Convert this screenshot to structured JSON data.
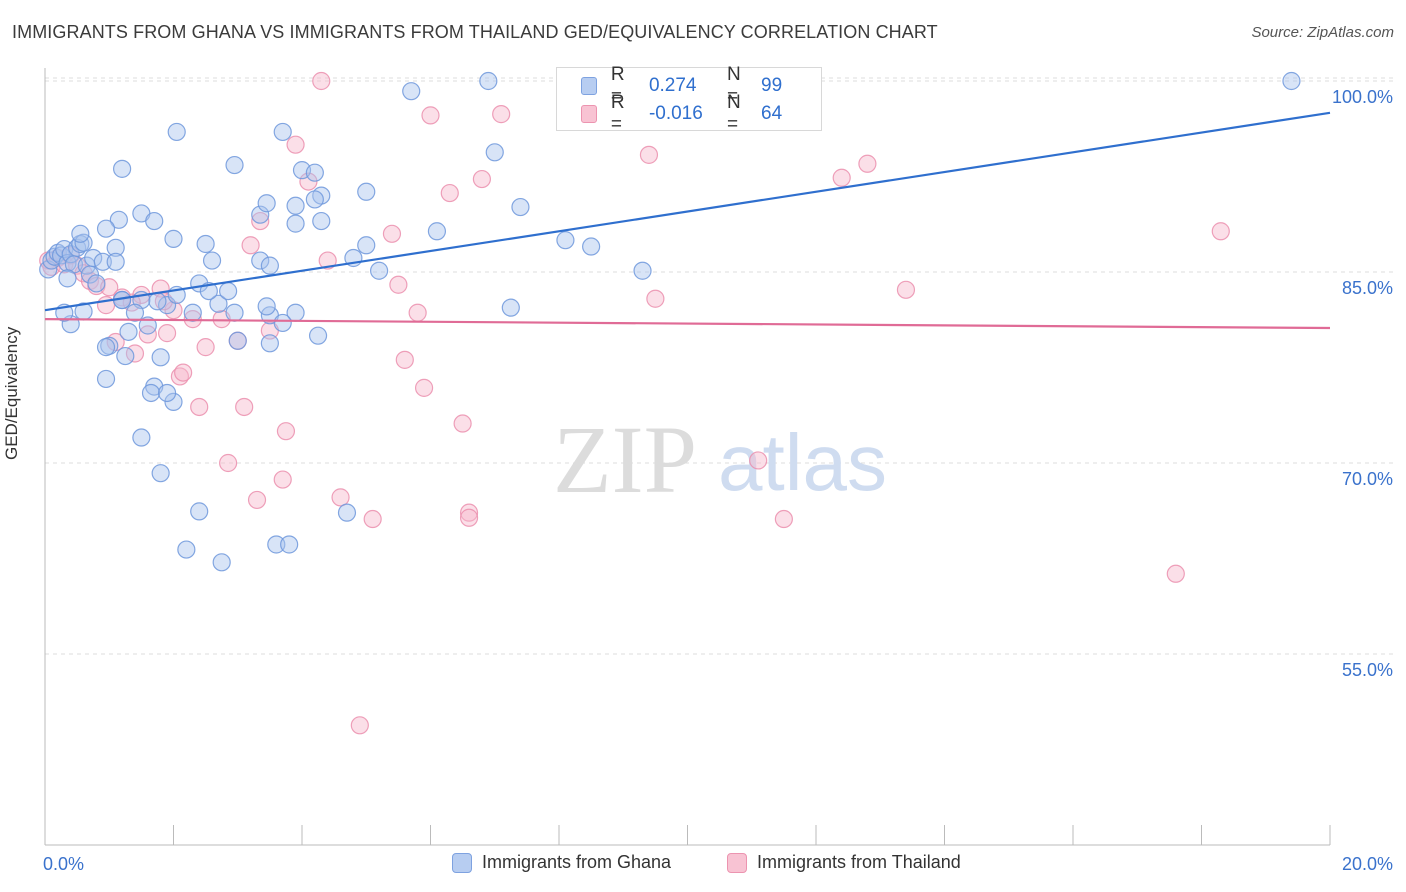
{
  "title": "IMMIGRANTS FROM GHANA VS IMMIGRANTS FROM THAILAND GED/EQUIVALENCY CORRELATION CHART",
  "source": "Source: ZipAtlas.com",
  "watermark": {
    "zip": "ZIP",
    "atlas": "atlas"
  },
  "colors": {
    "ghana_fill": "#a9c3ee",
    "ghana_stroke": "#6f98dc",
    "ghana_line": "#2f6fce",
    "thailand_fill": "#f6b8cb",
    "thailand_stroke": "#eb8fae",
    "thailand_line": "#e06b96",
    "axis_label": "#3a72cc",
    "grid": "#dddddd"
  },
  "stats": {
    "ghana": {
      "r_label": "R =",
      "r": "0.274",
      "n_label": "N =",
      "n": "99"
    },
    "thailand": {
      "r_label": "R =",
      "r": "-0.016",
      "n_label": "N =",
      "n": "64"
    }
  },
  "legend": {
    "ghana": "Immigrants from Ghana",
    "thailand": "Immigrants from Thailand"
  },
  "chart_data": {
    "type": "scatter",
    "xlabel": "",
    "ylabel": "GED/Equivalency",
    "xlim": [
      0,
      20
    ],
    "ylim": [
      40,
      100
    ],
    "x_tick_labels": [
      "0.0%",
      "20.0%"
    ],
    "y_ticks": [
      55,
      70,
      85,
      100
    ],
    "y_tick_labels": [
      "55.0%",
      "70.0%",
      "85.0%",
      "100.0%"
    ],
    "grid": "horizontal dashed",
    "series": [
      {
        "name": "Immigrants from Ghana",
        "trend": {
          "x": [
            0,
            20
          ],
          "y": [
            82.0,
            97.5
          ]
        },
        "points": [
          [
            0.05,
            85.2
          ],
          [
            0.1,
            85.9
          ],
          [
            0.15,
            86.2
          ],
          [
            0.2,
            86.5
          ],
          [
            0.25,
            86.3
          ],
          [
            0.3,
            86.8
          ],
          [
            0.35,
            85.7
          ],
          [
            0.4,
            86.4
          ],
          [
            0.45,
            85.6
          ],
          [
            0.5,
            86.9
          ],
          [
            0.55,
            87.2
          ],
          [
            0.6,
            87.3
          ],
          [
            0.65,
            85.5
          ],
          [
            0.7,
            84.8
          ],
          [
            0.75,
            86.1
          ],
          [
            0.8,
            84.1
          ],
          [
            0.9,
            85.8
          ],
          [
            1.1,
            86.9
          ],
          [
            1.2,
            82.8
          ],
          [
            0.55,
            88.0
          ],
          [
            1.1,
            85.8
          ],
          [
            1.15,
            89.1
          ],
          [
            1.5,
            89.6
          ],
          [
            1.7,
            89.0
          ],
          [
            2.0,
            87.6
          ],
          [
            2.5,
            87.2
          ],
          [
            0.95,
            88.4
          ],
          [
            1.2,
            82.8
          ],
          [
            1.5,
            82.8
          ],
          [
            1.9,
            82.4
          ],
          [
            2.05,
            83.2
          ],
          [
            2.4,
            84.1
          ],
          [
            2.7,
            82.5
          ],
          [
            2.95,
            81.8
          ],
          [
            3.5,
            81.6
          ],
          [
            3.9,
            81.8
          ],
          [
            0.4,
            80.9
          ],
          [
            1.0,
            79.2
          ],
          [
            1.3,
            80.3
          ],
          [
            1.6,
            80.8
          ],
          [
            0.95,
            79.1
          ],
          [
            1.25,
            78.4
          ],
          [
            1.8,
            78.3
          ],
          [
            0.95,
            76.6
          ],
          [
            1.7,
            76.0
          ],
          [
            1.65,
            75.5
          ],
          [
            2.0,
            74.8
          ],
          [
            1.9,
            75.5
          ],
          [
            1.5,
            72.0
          ],
          [
            1.8,
            69.2
          ],
          [
            2.4,
            66.2
          ],
          [
            2.2,
            63.2
          ],
          [
            2.75,
            62.2
          ],
          [
            3.6,
            63.6
          ],
          [
            3.8,
            63.6
          ],
          [
            4.7,
            66.1
          ],
          [
            0.3,
            81.8
          ],
          [
            0.6,
            81.9
          ],
          [
            1.4,
            81.8
          ],
          [
            1.75,
            82.7
          ],
          [
            2.3,
            81.8
          ],
          [
            2.85,
            83.5
          ],
          [
            3.0,
            79.6
          ],
          [
            3.45,
            82.3
          ],
          [
            3.5,
            79.4
          ],
          [
            3.7,
            81.0
          ],
          [
            4.25,
            80.0
          ],
          [
            0.35,
            84.5
          ],
          [
            2.6,
            85.9
          ],
          [
            3.35,
            85.9
          ],
          [
            1.2,
            93.1
          ],
          [
            2.05,
            96.0
          ],
          [
            2.95,
            93.4
          ],
          [
            3.7,
            96.0
          ],
          [
            4.0,
            93.0
          ],
          [
            4.2,
            92.8
          ],
          [
            4.3,
            91.0
          ],
          [
            5.0,
            91.3
          ],
          [
            3.35,
            89.5
          ],
          [
            3.45,
            90.4
          ],
          [
            3.9,
            90.2
          ],
          [
            3.9,
            88.8
          ],
          [
            4.2,
            90.7
          ],
          [
            4.3,
            89.0
          ],
          [
            5.0,
            87.1
          ],
          [
            5.2,
            85.1
          ],
          [
            4.8,
            86.1
          ],
          [
            6.1,
            88.2
          ],
          [
            5.7,
            99.2
          ],
          [
            6.9,
            100.0
          ],
          [
            7.0,
            94.4
          ],
          [
            7.4,
            90.1
          ],
          [
            8.1,
            87.5
          ],
          [
            8.5,
            87.0
          ],
          [
            9.3,
            85.1
          ],
          [
            19.4,
            100.0
          ],
          [
            7.25,
            82.2
          ],
          [
            3.5,
            85.5
          ],
          [
            2.55,
            83.5
          ]
        ]
      },
      {
        "name": "Immigrants from Thailand",
        "trend": {
          "x": [
            0,
            20
          ],
          "y": [
            81.3,
            80.6
          ]
        },
        "points": [
          [
            0.05,
            85.9
          ],
          [
            0.1,
            85.4
          ],
          [
            0.2,
            86.1
          ],
          [
            0.3,
            85.6
          ],
          [
            0.4,
            86.3
          ],
          [
            0.5,
            85.5
          ],
          [
            0.6,
            84.9
          ],
          [
            0.7,
            84.3
          ],
          [
            0.8,
            83.9
          ],
          [
            1.0,
            83.8
          ],
          [
            1.2,
            83.0
          ],
          [
            1.5,
            83.2
          ],
          [
            1.8,
            83.7
          ],
          [
            2.0,
            82.0
          ],
          [
            2.3,
            81.3
          ],
          [
            1.1,
            79.5
          ],
          [
            1.4,
            78.6
          ],
          [
            1.9,
            80.2
          ],
          [
            2.5,
            79.1
          ],
          [
            3.0,
            79.6
          ],
          [
            1.6,
            80.1
          ],
          [
            2.1,
            76.8
          ],
          [
            2.4,
            74.4
          ],
          [
            3.1,
            74.4
          ],
          [
            2.85,
            70.0
          ],
          [
            3.3,
            67.1
          ],
          [
            3.7,
            68.7
          ],
          [
            3.75,
            72.5
          ],
          [
            3.2,
            87.1
          ],
          [
            3.35,
            89.0
          ],
          [
            3.9,
            95.0
          ],
          [
            4.1,
            92.1
          ],
          [
            4.4,
            85.9
          ],
          [
            4.6,
            67.3
          ],
          [
            5.1,
            65.6
          ],
          [
            5.4,
            88.0
          ],
          [
            5.5,
            84.0
          ],
          [
            5.6,
            78.1
          ],
          [
            5.8,
            81.8
          ],
          [
            5.9,
            75.9
          ],
          [
            6.0,
            97.3
          ],
          [
            6.3,
            91.2
          ],
          [
            6.5,
            73.1
          ],
          [
            6.6,
            66.1
          ],
          [
            6.8,
            92.3
          ],
          [
            7.1,
            97.4
          ],
          [
            6.6,
            65.7
          ],
          [
            9.4,
            94.2
          ],
          [
            9.5,
            82.9
          ],
          [
            11.1,
            70.2
          ],
          [
            11.5,
            65.6
          ],
          [
            12.4,
            92.4
          ],
          [
            12.8,
            93.5
          ],
          [
            13.4,
            83.6
          ],
          [
            17.6,
            61.3
          ],
          [
            18.3,
            88.2
          ],
          [
            4.3,
            100.0
          ],
          [
            2.15,
            77.1
          ],
          [
            4.9,
            49.4
          ],
          [
            0.95,
            82.4
          ],
          [
            2.75,
            81.3
          ],
          [
            3.5,
            80.4
          ],
          [
            1.85,
            82.7
          ],
          [
            1.35,
            82.6
          ]
        ]
      }
    ]
  }
}
